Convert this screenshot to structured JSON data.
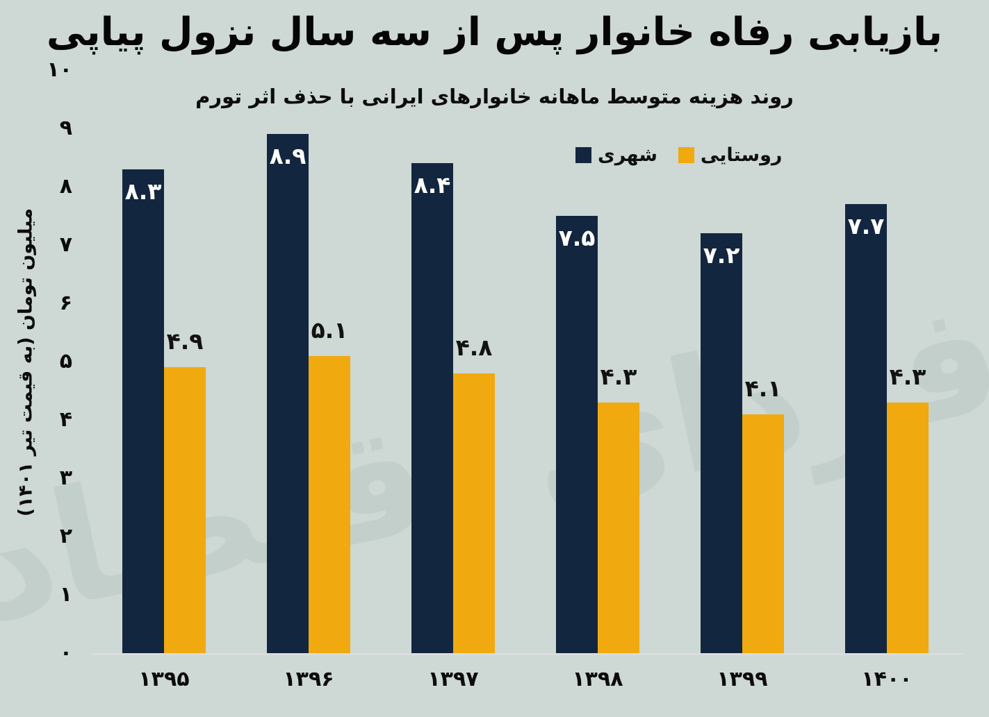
{
  "page": {
    "background": "#ced8d4",
    "baseline_color": "#d9dedc"
  },
  "header": {
    "title": "بازیابی رفاه خانوار پس از سه سال نزول پیاپی",
    "subtitle": "روند هزینه متوسط ماهانه خانوارهای ایرانی با حذف اثر تورم"
  },
  "watermark": {
    "text": "فردای اقتصاد",
    "color": "#c3cfca"
  },
  "legend": {
    "items": [
      {
        "label": "شهری",
        "color": "#13263f"
      },
      {
        "label": "روستایی",
        "color": "#f0a90f"
      }
    ]
  },
  "y_axis": {
    "label": "میلیون تومان (به قیمت تیر ۱۴۰۱)",
    "ticks": [
      {
        "label": "۱۰",
        "value": 10
      },
      {
        "label": "۹",
        "value": 9
      },
      {
        "label": "۸",
        "value": 8
      },
      {
        "label": "۷",
        "value": 7
      },
      {
        "label": "۶",
        "value": 6
      },
      {
        "label": "۵",
        "value": 5
      },
      {
        "label": "۴",
        "value": 4
      },
      {
        "label": "۳",
        "value": 3
      },
      {
        "label": "۲",
        "value": 2
      },
      {
        "label": "۱",
        "value": 1
      },
      {
        "label": "۰",
        "value": 0
      }
    ]
  },
  "chart_data": {
    "type": "bar",
    "title": "بازیابی رفاه خانوار پس از سه سال نزول پیاپی",
    "subtitle": "روند هزینه متوسط ماهانه خانوارهای ایرانی با حذف اثر تورم",
    "ylabel": "میلیون تومان (به قیمت تیر ۱۴۰۱)",
    "xlabel": "",
    "ylim": [
      0,
      10
    ],
    "grid": false,
    "legend_position": "top-right-inside",
    "categories": [
      "۱۳۹۵",
      "۱۳۹۶",
      "۱۳۹۷",
      "۱۳۹۸",
      "۱۳۹۹",
      "۱۴۰۰"
    ],
    "series": [
      {
        "name": "شهری",
        "color": "#13263f",
        "label_color": "#ffffff",
        "label_placement": "inside-top",
        "values": [
          8.3,
          8.9,
          8.4,
          7.5,
          7.2,
          7.7
        ],
        "value_labels": [
          "۸.۳",
          "۸.۹",
          "۸.۴",
          "۷.۵",
          "۷.۲",
          "۷.۷"
        ]
      },
      {
        "name": "روستایی",
        "color": "#f0a90f",
        "label_color": "#121212",
        "label_placement": "above",
        "values": [
          4.9,
          5.1,
          4.8,
          4.3,
          4.1,
          4.3
        ],
        "value_labels": [
          "۴.۹",
          "۵.۱",
          "۴.۸",
          "۴.۳",
          "۴.۱",
          "۴.۳"
        ]
      }
    ]
  }
}
